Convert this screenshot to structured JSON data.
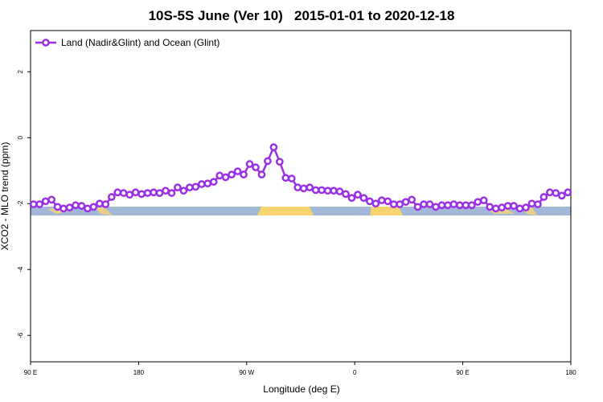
{
  "chart_data": {
    "type": "line",
    "title": "10S-5S June (Ver 10)   2015-01-01 to 2020-12-18",
    "xlabel": "Longitude (deg E)",
    "ylabel": "XCO2 - MLO trend (ppm)",
    "x": [
      92.5,
      97.5,
      102.5,
      107.5,
      112.5,
      117.5,
      122.5,
      127.5,
      132.5,
      137.5,
      142.5,
      147.5,
      152.5,
      157.5,
      162.5,
      167.5,
      172.5,
      177.5,
      182.5,
      187.5,
      192.5,
      197.5,
      202.5,
      207.5,
      212.5,
      217.5,
      222.5,
      227.5,
      232.5,
      237.5,
      242.5,
      247.5,
      252.5,
      257.5,
      262.5,
      267.5,
      272.5,
      277.5,
      282.5,
      287.5,
      292.5,
      297.5,
      302.5,
      307.5,
      312.5,
      317.5,
      322.5,
      327.5,
      332.5,
      337.5,
      342.5,
      347.5,
      352.5,
      357.5,
      362.5,
      367.5,
      372.5,
      377.5,
      382.5,
      387.5,
      392.5,
      397.5,
      402.5,
      407.5,
      412.5,
      417.5,
      422.5,
      427.5,
      432.5,
      437.5,
      442.5,
      447.5,
      452.5,
      457.5,
      462.5,
      467.5,
      472.5,
      477.5,
      482.5,
      487.5,
      492.5,
      497.5,
      502.5,
      507.5,
      512.5,
      517.5,
      522.5,
      527.5,
      532.5,
      537.5
    ],
    "series": [
      {
        "name": "Land (Nadir&Glint) and Ocean (Glint)",
        "color": "#9b2fe6",
        "values": [
          -2.02,
          -2.02,
          -1.93,
          -1.88,
          -2.1,
          -2.15,
          -2.12,
          -2.05,
          -2.07,
          -2.15,
          -2.1,
          -2.0,
          -2.02,
          -1.8,
          -1.66,
          -1.68,
          -1.73,
          -1.66,
          -1.71,
          -1.68,
          -1.66,
          -1.68,
          -1.61,
          -1.68,
          -1.51,
          -1.61,
          -1.51,
          -1.49,
          -1.41,
          -1.39,
          -1.34,
          -1.15,
          -1.2,
          -1.12,
          -1.02,
          -1.12,
          -0.8,
          -0.9,
          -1.12,
          -0.71,
          -0.29,
          -0.73,
          -1.22,
          -1.24,
          -1.51,
          -1.54,
          -1.51,
          -1.59,
          -1.59,
          -1.61,
          -1.61,
          -1.63,
          -1.71,
          -1.83,
          -1.73,
          -1.83,
          -1.93,
          -2.0,
          -1.9,
          -1.93,
          -2.02,
          -2.02,
          -1.95,
          -1.88,
          -2.1,
          -2.02,
          -2.02,
          -2.1,
          -2.05,
          -2.05,
          -2.02,
          -2.05,
          -2.05,
          -2.05,
          -1.95,
          -1.9,
          -2.1,
          -2.15,
          -2.12,
          -2.07,
          -2.07,
          -2.15,
          -2.12,
          -2.0,
          -2.02,
          -1.8,
          -1.66,
          -1.68,
          -1.76,
          -1.66
        ]
      }
    ],
    "xlim": [
      90,
      540
    ],
    "xticks": [
      {
        "value": 90,
        "label": "90 E"
      },
      {
        "value": 180,
        "label": "180"
      },
      {
        "value": 270,
        "label": "90 W"
      },
      {
        "value": 360,
        "label": "0"
      },
      {
        "value": 450,
        "label": "90 E"
      },
      {
        "value": 540,
        "label": "180"
      }
    ],
    "ylim": [
      -6.8,
      3.25
    ],
    "yticks": [
      -6,
      -4,
      -2,
      0,
      2
    ],
    "legend": "top-left"
  }
}
